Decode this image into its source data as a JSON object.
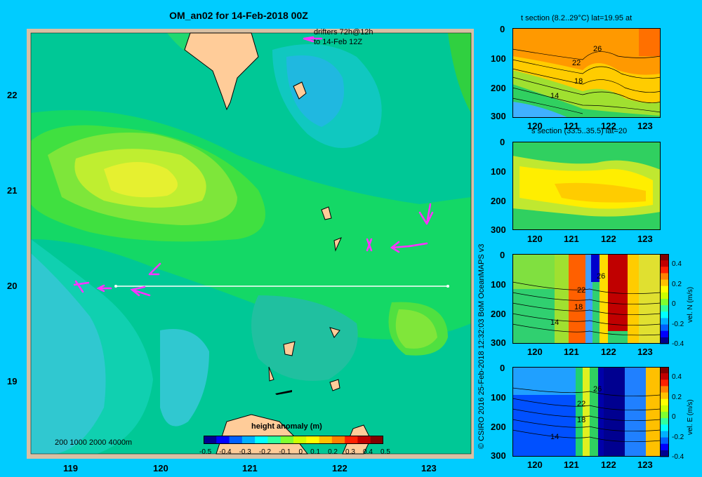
{
  "title": "OM_an02 for 14-Feb-2018 00Z",
  "drifters_legend": [
    "drifters 72h@12h",
    "to 14-Feb 12Z"
  ],
  "depth_legend": "200  1000  2000  4000m",
  "colorbar": {
    "label": "height anomaly (m)",
    "ticks": [
      "-0.5",
      "-0.4",
      "-0.3",
      "-0.2",
      "-0.1",
      "0",
      "0.1",
      "0.2",
      "0.3",
      "0.4",
      "0.5"
    ],
    "colors": [
      "#00008f",
      "#0000ff",
      "#0060ff",
      "#00b0ff",
      "#00ffff",
      "#30ff9f",
      "#7fff30",
      "#ccff00",
      "#ffff00",
      "#ffc000",
      "#ff8000",
      "#ff2000",
      "#c00000",
      "#800000"
    ]
  },
  "map": {
    "x_ticks": [
      "119",
      "120",
      "121",
      "122",
      "123"
    ],
    "y_ticks": [
      "22",
      "21",
      "20",
      "19"
    ]
  },
  "panels": [
    {
      "title": "t section (8.2..29°C) lat=19.95 at",
      "y_ticks": [
        "0",
        "100",
        "200",
        "300"
      ],
      "x_ticks": [
        "120",
        "121",
        "122",
        "123"
      ],
      "contour_labels": [
        "26",
        "22",
        "18",
        "14"
      ]
    },
    {
      "title": "s section (33.5..35.5) lat=20",
      "y_ticks": [
        "0",
        "100",
        "200",
        "300"
      ],
      "x_ticks": [
        "120",
        "121",
        "122",
        "123"
      ],
      "contour_labels": []
    },
    {
      "title": "",
      "y_ticks": [
        "0",
        "100",
        "200",
        "300"
      ],
      "x_ticks": [
        "120",
        "121",
        "122",
        "123"
      ],
      "contour_labels": [
        "26",
        "22",
        "18",
        "14"
      ],
      "cb_ticks": [
        "0.4",
        "0.2",
        "0",
        "-0.2",
        "-0.4"
      ],
      "cb_label": "vel. N (m/s)"
    },
    {
      "title": "",
      "y_ticks": [
        "0",
        "100",
        "200",
        "300"
      ],
      "x_ticks": [
        "120",
        "121",
        "122",
        "123"
      ],
      "contour_labels": [
        "26",
        "22",
        "18",
        "14"
      ],
      "cb_ticks": [
        "0.4",
        "0.2",
        "0",
        "-0.2",
        "-0.4"
      ],
      "cb_label": "vel. E (m/s)"
    }
  ],
  "credit": "© CSIRO 2016   25-Feb-2018 12:32:03 BoM OceanMAPS v3"
}
